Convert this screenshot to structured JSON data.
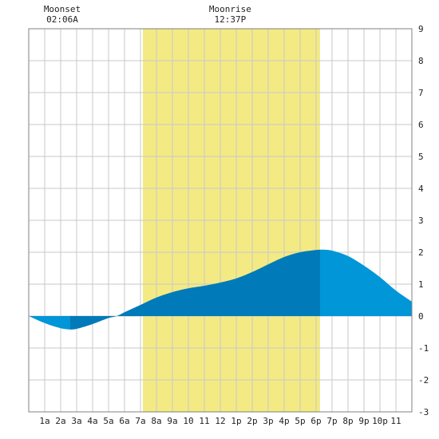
{
  "chart_data": {
    "type": "area",
    "title": "",
    "xlabel": "",
    "ylabel": "",
    "x_range": [
      0,
      24
    ],
    "ylim": [
      -3,
      9
    ],
    "grid": true,
    "x_ticks": [
      {
        "x": 1,
        "label": "1a"
      },
      {
        "x": 2,
        "label": "2a"
      },
      {
        "x": 3,
        "label": "3a"
      },
      {
        "x": 4,
        "label": "4a"
      },
      {
        "x": 5,
        "label": "5a"
      },
      {
        "x": 6,
        "label": "6a"
      },
      {
        "x": 7,
        "label": "7a"
      },
      {
        "x": 8,
        "label": "8a"
      },
      {
        "x": 9,
        "label": "9a"
      },
      {
        "x": 10,
        "label": "10"
      },
      {
        "x": 11,
        "label": "11"
      },
      {
        "x": 12,
        "label": "12"
      },
      {
        "x": 13,
        "label": "1p"
      },
      {
        "x": 14,
        "label": "2p"
      },
      {
        "x": 15,
        "label": "3p"
      },
      {
        "x": 16,
        "label": "4p"
      },
      {
        "x": 17,
        "label": "5p"
      },
      {
        "x": 18,
        "label": "6p"
      },
      {
        "x": 19,
        "label": "7p"
      },
      {
        "x": 20,
        "label": "8p"
      },
      {
        "x": 21,
        "label": "9p"
      },
      {
        "x": 22,
        "label": "10p"
      },
      {
        "x": 23,
        "label": "11"
      }
    ],
    "y_ticks": [
      9,
      8,
      7,
      6,
      5,
      4,
      3,
      2,
      1,
      0,
      -1,
      -2,
      -3
    ],
    "daylight": {
      "start": 7.15,
      "end": 18.25,
      "color": "#f3ea84"
    },
    "annotations": [
      {
        "x": 2.1,
        "title": "Moonset",
        "time": "02:06A"
      },
      {
        "x": 12.62,
        "title": "Moonrise",
        "time": "12:37P"
      }
    ],
    "series": [
      {
        "x": [
          0,
          1,
          2,
          2.6,
          3,
          4,
          5,
          5.5,
          6,
          7,
          8,
          9,
          10,
          11,
          12,
          13,
          14,
          15,
          16,
          17,
          18,
          18.5,
          19,
          20,
          21,
          22,
          23,
          24
        ],
        "y": [
          0,
          -0.22,
          -0.38,
          -0.42,
          -0.4,
          -0.25,
          -0.06,
          0,
          0.12,
          0.35,
          0.58,
          0.75,
          0.87,
          0.95,
          1.05,
          1.18,
          1.38,
          1.62,
          1.85,
          2.0,
          2.07,
          2.08,
          2.05,
          1.88,
          1.58,
          1.22,
          0.8,
          0.45
        ]
      }
    ],
    "colors": {
      "night_fill": "#0096d8",
      "day_fill": "#007ab8",
      "grid": "#c8c8c8",
      "frame": "#808080"
    }
  }
}
